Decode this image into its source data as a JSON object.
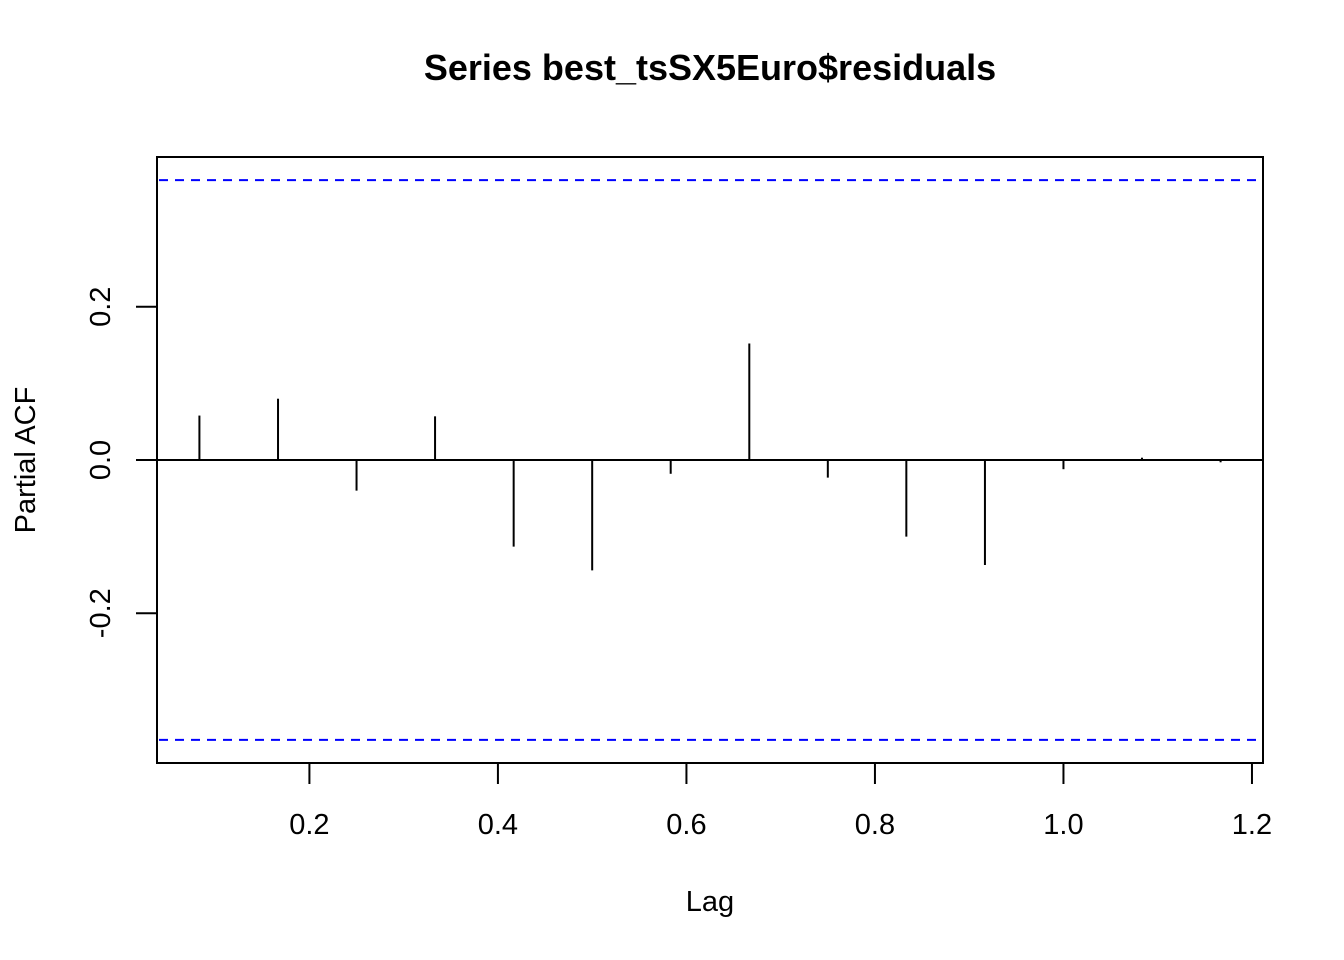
{
  "chart_data": {
    "type": "bar",
    "title": "Series  best_tsSX5Euro$residuals",
    "xlabel": "Lag",
    "ylabel": "Partial ACF",
    "xlim": [
      0.0383,
      1.2117
    ],
    "ylim": [
      -0.3955,
      0.3955
    ],
    "x_ticks": [
      0.2,
      0.4,
      0.6,
      0.8,
      1.0,
      1.2
    ],
    "x_tick_labels": [
      "0.2",
      "0.4",
      "0.6",
      "0.8",
      "1.0",
      "1.2"
    ],
    "y_ticks": [
      -0.2,
      0.0,
      0.2
    ],
    "y_tick_labels": [
      "-0.2",
      "0.0",
      "0.2"
    ],
    "lags": [
      0.0833,
      0.1667,
      0.25,
      0.3333,
      0.4167,
      0.5,
      0.5833,
      0.6667,
      0.75,
      0.8333,
      0.9167,
      1.0,
      1.0833,
      1.1667
    ],
    "values": [
      0.058,
      0.08,
      -0.04,
      0.057,
      -0.113,
      -0.144,
      -0.018,
      0.152,
      -0.023,
      -0.1,
      -0.137,
      -0.012,
      0.003,
      -0.003
    ],
    "confidence_limit": 0.3653,
    "grid": false,
    "colors": {
      "ci_line": "#0000ff",
      "bars": "#000000",
      "zero_line": "#000000"
    }
  }
}
